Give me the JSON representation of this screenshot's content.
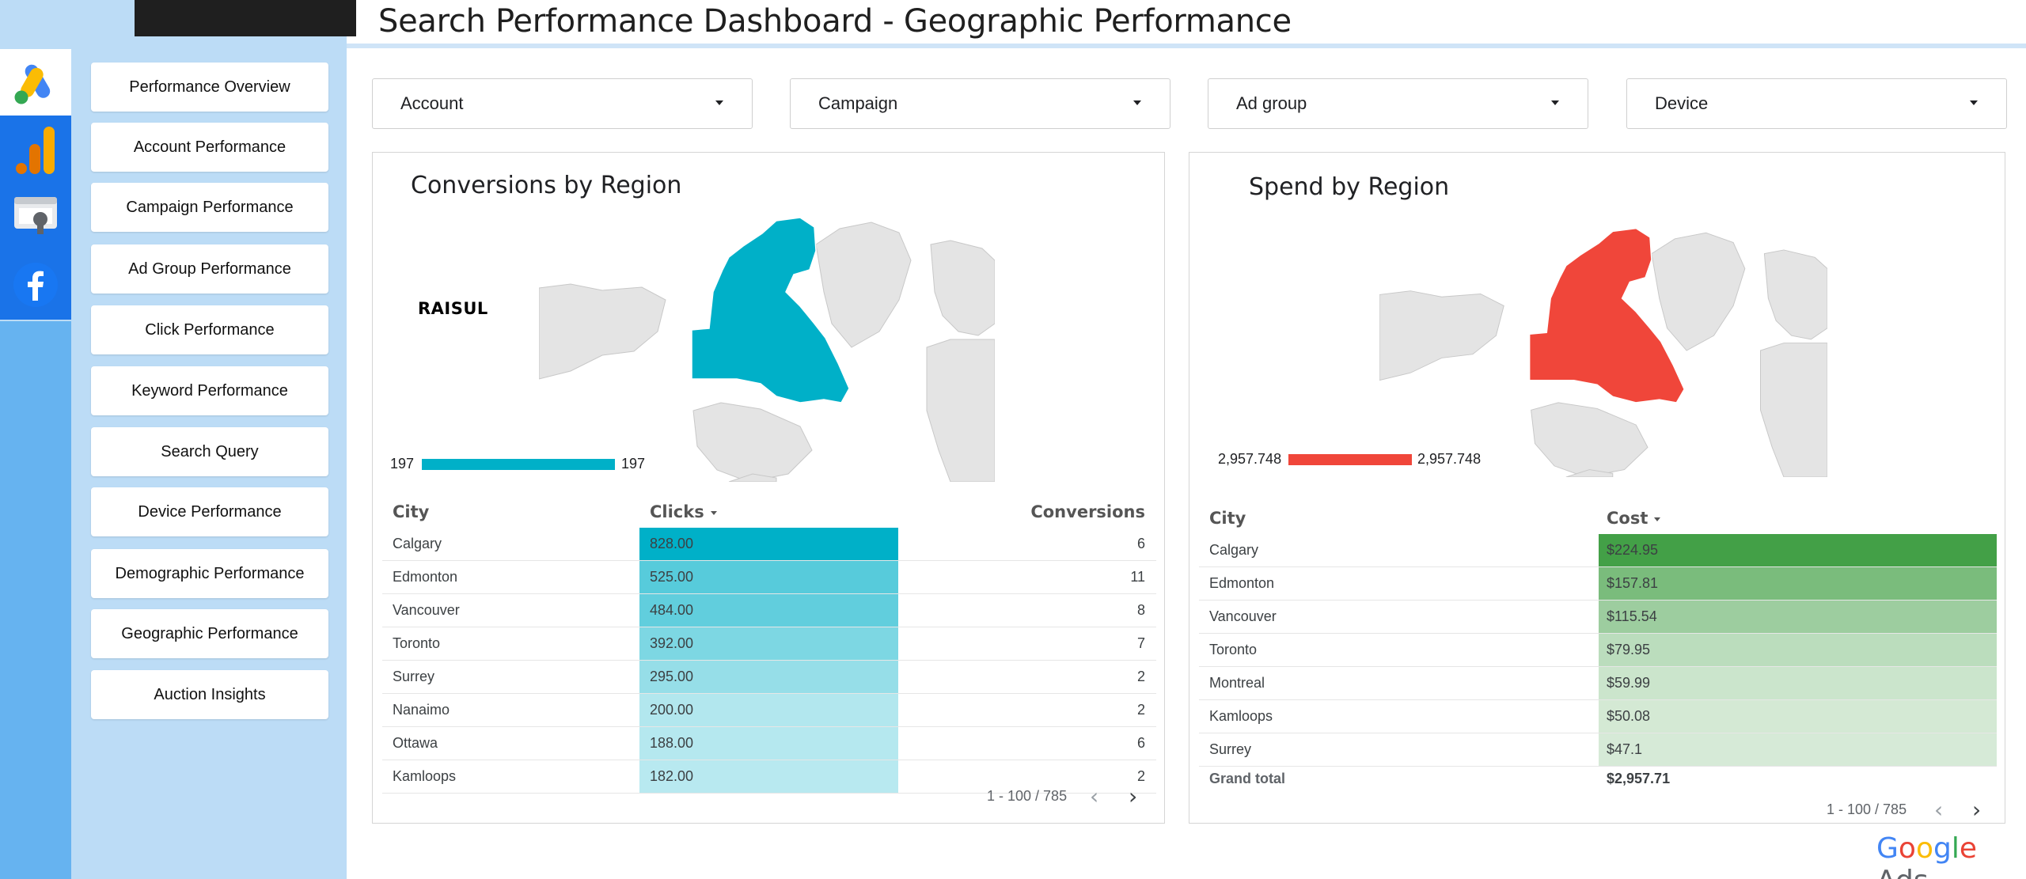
{
  "header": {
    "title": "Search Performance Dashboard - Geographic Performance"
  },
  "rail_icons": [
    "google-ads-icon",
    "google-analytics-icon",
    "search-console-icon",
    "facebook-icon"
  ],
  "nav": [
    "Performance Overview",
    "Account Performance",
    "Campaign Performance",
    "Ad Group Performance",
    "Click Performance",
    "Keyword Performance",
    "Search Query",
    "Device Performance",
    "Demographic Performance",
    "Geographic Performance",
    "Auction Insights"
  ],
  "filters": [
    "Account",
    "Campaign",
    "Ad group",
    "Device"
  ],
  "conversions_panel": {
    "title": "Conversions by Region",
    "watermark": "RAISUL",
    "legend_min": "197",
    "legend_max": "197",
    "columns": [
      "City",
      "Clicks",
      "Conversions"
    ],
    "rows": [
      {
        "city": "Calgary",
        "clicks": "828.00",
        "conversions": "6"
      },
      {
        "city": "Edmonton",
        "clicks": "525.00",
        "conversions": "11"
      },
      {
        "city": "Vancouver",
        "clicks": "484.00",
        "conversions": "8"
      },
      {
        "city": "Toronto",
        "clicks": "392.00",
        "conversions": "7"
      },
      {
        "city": "Surrey",
        "clicks": "295.00",
        "conversions": "2"
      },
      {
        "city": "Nanaimo",
        "clicks": "200.00",
        "conversions": "2"
      },
      {
        "city": "Ottawa",
        "clicks": "188.00",
        "conversions": "6"
      },
      {
        "city": "Kamloops",
        "clicks": "182.00",
        "conversions": "2"
      }
    ],
    "pager": "1 - 100 / 785"
  },
  "spend_panel": {
    "title": "Spend by Region",
    "legend_min": "2,957.748",
    "legend_max": "2,957.748",
    "columns": [
      "City",
      "Cost"
    ],
    "rows": [
      {
        "city": "Calgary",
        "cost": "$224.95"
      },
      {
        "city": "Edmonton",
        "cost": "$157.81"
      },
      {
        "city": "Vancouver",
        "cost": "$115.54"
      },
      {
        "city": "Toronto",
        "cost": "$79.95"
      },
      {
        "city": "Montreal",
        "cost": "$59.99"
      },
      {
        "city": "Kamloops",
        "cost": "$50.08"
      },
      {
        "city": "Surrey",
        "cost": "$47.1"
      }
    ],
    "grand_total_label": "Grand total",
    "grand_total": "$2,957.71",
    "pager": "1 - 100 / 785"
  },
  "brand": {
    "google": "Google",
    "ads": "Ads"
  },
  "colors": {
    "conversions_accent": "#00b0c8",
    "spend_accent": "#f0463a",
    "cost_heat_max": "#43a047",
    "rail": "#66b3f0",
    "nav_panel": "#bcdcf6"
  }
}
